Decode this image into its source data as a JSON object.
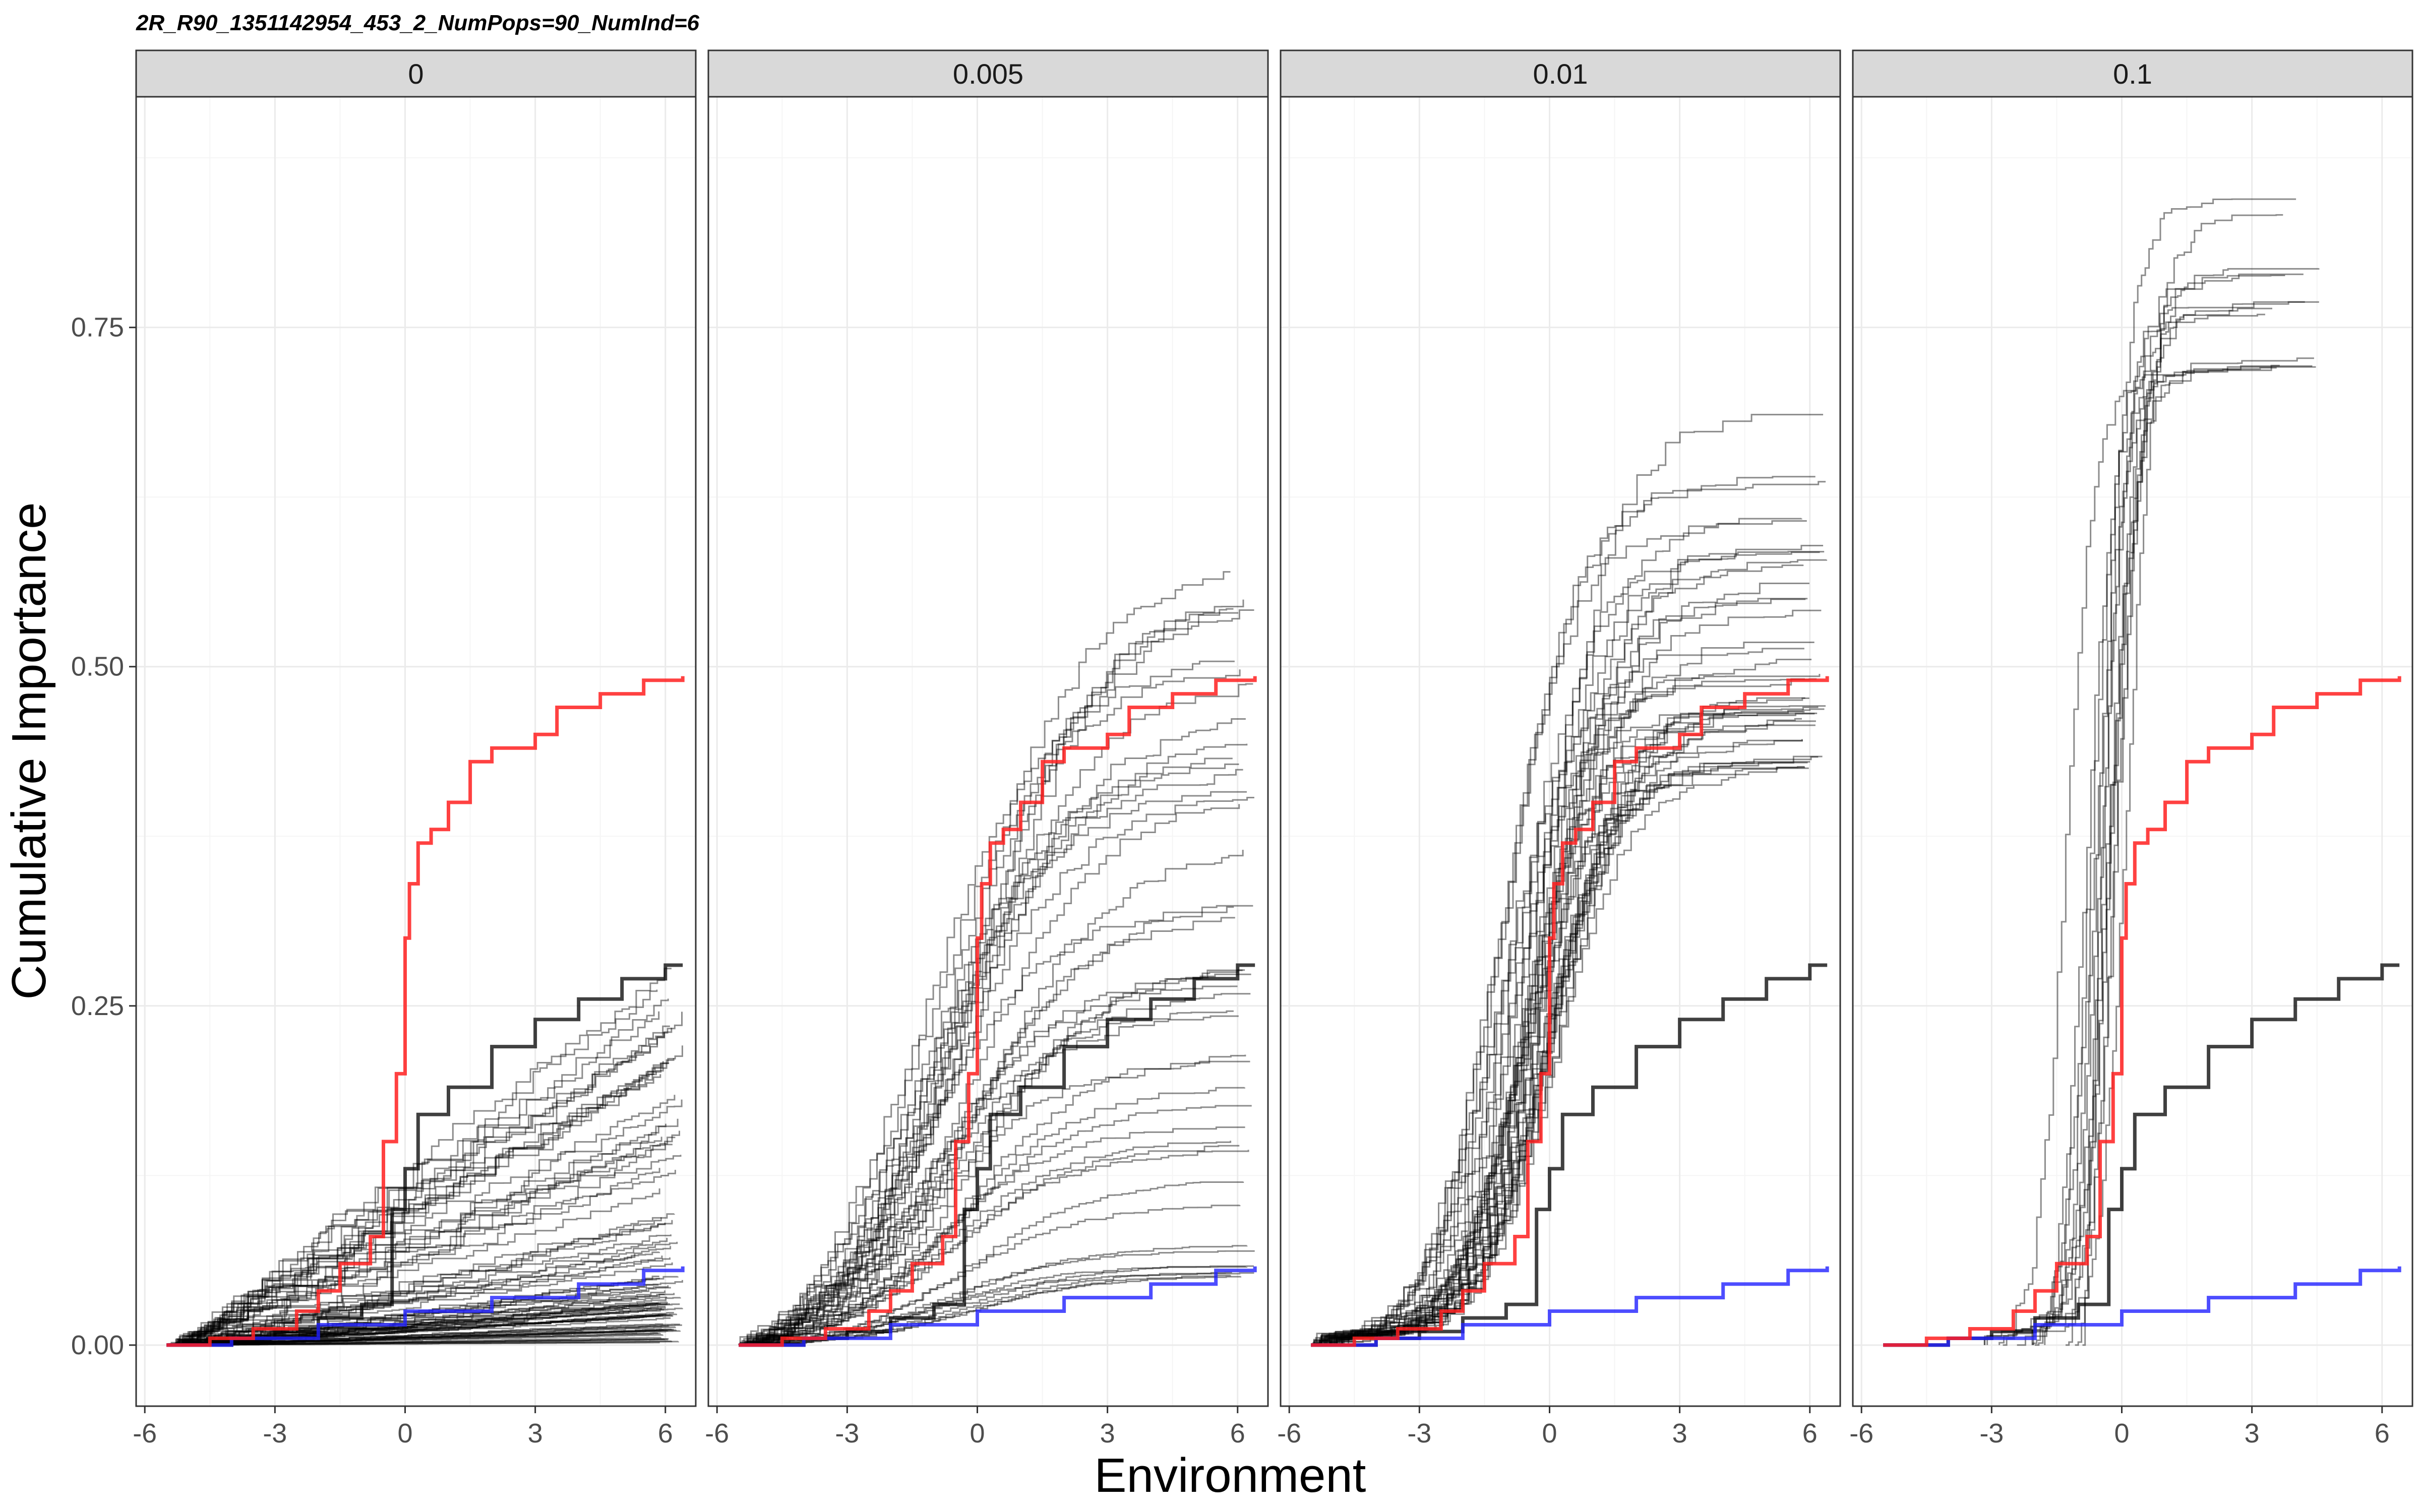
{
  "chart_data": {
    "type": "line",
    "title": "2R_R90_1351142954_453_2_NumPops=90_NumInd=6",
    "xlabel": "Environment",
    "ylabel": "Cumulative Importance",
    "xlim": [
      -6.2,
      6.7
    ],
    "ylim": [
      -0.045,
      0.92
    ],
    "x_ticks": [
      -6,
      -3,
      0,
      3,
      6
    ],
    "x_tick_labels": [
      "-6",
      "-3",
      "0",
      "3",
      "6"
    ],
    "y_ticks": [
      0,
      0.25,
      0.5,
      0.75
    ],
    "y_tick_labels": [
      "0.00",
      "0.25",
      "0.50",
      "0.75"
    ],
    "grid": true,
    "legend": "none",
    "colors": {
      "red_series": "#ff2020",
      "blue_series": "#2020ff",
      "black_series": "#000000",
      "strip_fill": "#d9d9d9",
      "grid_major": "#ebebeb",
      "grid_minor": "#f5f5f5"
    },
    "shared_curves": {
      "red": [
        [
          -5.5,
          0
        ],
        [
          -4.5,
          0.005
        ],
        [
          -3.5,
          0.012
        ],
        [
          -2.5,
          0.025
        ],
        [
          -2,
          0.04
        ],
        [
          -1.5,
          0.06
        ],
        [
          -0.8,
          0.08
        ],
        [
          -0.5,
          0.15
        ],
        [
          -0.2,
          0.2
        ],
        [
          0,
          0.3
        ],
        [
          0.1,
          0.34
        ],
        [
          0.3,
          0.37
        ],
        [
          0.6,
          0.38
        ],
        [
          1,
          0.4
        ],
        [
          1.5,
          0.43
        ],
        [
          2,
          0.44
        ],
        [
          3,
          0.45
        ],
        [
          3.5,
          0.47
        ],
        [
          4.5,
          0.48
        ],
        [
          5.5,
          0.49
        ],
        [
          6.4,
          0.493
        ]
      ],
      "black": [
        [
          -5.5,
          0
        ],
        [
          -4,
          0.005
        ],
        [
          -3,
          0.01
        ],
        [
          -2,
          0.02
        ],
        [
          -1,
          0.03
        ],
        [
          -0.3,
          0.1
        ],
        [
          0,
          0.13
        ],
        [
          0.3,
          0.17
        ],
        [
          1,
          0.19
        ],
        [
          2,
          0.22
        ],
        [
          3,
          0.24
        ],
        [
          4,
          0.255
        ],
        [
          5,
          0.27
        ],
        [
          6,
          0.28
        ],
        [
          6.4,
          0.28
        ]
      ],
      "blue": [
        [
          -5.5,
          0
        ],
        [
          -4,
          0.005
        ],
        [
          -2,
          0.015
        ],
        [
          0,
          0.025
        ],
        [
          2,
          0.035
        ],
        [
          4,
          0.045
        ],
        [
          5.5,
          0.055
        ],
        [
          6.4,
          0.058
        ]
      ]
    },
    "panels": [
      {
        "label": "0",
        "series": [
          {
            "color": "red",
            "x_min": -5.5,
            "x_max": 6.4,
            "values": "shared"
          },
          {
            "color": "black",
            "x_min": -5.5,
            "x_max": 6.4,
            "values": "shared"
          },
          {
            "color": "blue",
            "x_min": -5.5,
            "x_max": 6.4,
            "values": "shared"
          },
          {
            "color": "gray",
            "count": 60,
            "x_min": -5.5,
            "x_max": 6.4,
            "final_min": 0.002,
            "final_max": 0.28,
            "steepness": 0.0
          },
          {
            "color": "gray_small",
            "count": 30,
            "x_min": -5.5,
            "x_max": 6.4,
            "final_min": 0.001,
            "final_max": 0.04,
            "steepness": 0.0
          }
        ]
      },
      {
        "label": "0.005",
        "series": [
          {
            "color": "red",
            "x_min": -5.5,
            "x_max": 6.4,
            "values": "shared"
          },
          {
            "color": "black",
            "x_min": -5.5,
            "x_max": 6.4,
            "values": "shared"
          },
          {
            "color": "blue",
            "x_min": -5.5,
            "x_max": 6.4,
            "values": "shared"
          },
          {
            "color": "gray",
            "count": 45,
            "x_min": -5.5,
            "x_max": 6.4,
            "final_min": 0.05,
            "final_max": 0.59,
            "steepness": 0.7
          }
        ]
      },
      {
        "label": "0.01",
        "series": [
          {
            "color": "red",
            "x_min": -5.5,
            "x_max": 6.4,
            "values": "shared"
          },
          {
            "color": "black",
            "x_min": -5.5,
            "x_max": 6.4,
            "values": "shared"
          },
          {
            "color": "blue",
            "x_min": -5.5,
            "x_max": 6.4,
            "values": "shared"
          },
          {
            "color": "gray",
            "count": 40,
            "x_min": -5.5,
            "x_max": 6.4,
            "final_min": 0.42,
            "final_max": 0.7,
            "steepness": 1.2
          }
        ]
      },
      {
        "label": "0.1",
        "series": [
          {
            "color": "red",
            "x_min": -5.5,
            "x_max": 6.4,
            "values": "shared"
          },
          {
            "color": "black",
            "x_min": -5.5,
            "x_max": 6.4,
            "values": "shared"
          },
          {
            "color": "blue",
            "x_min": -5.5,
            "x_max": 6.4,
            "values": "shared"
          },
          {
            "color": "gray",
            "count": 14,
            "x_min": -3.2,
            "x_max": 4.6,
            "final_min": 0.71,
            "final_max": 0.87,
            "steepness": 3.0
          }
        ]
      }
    ]
  }
}
